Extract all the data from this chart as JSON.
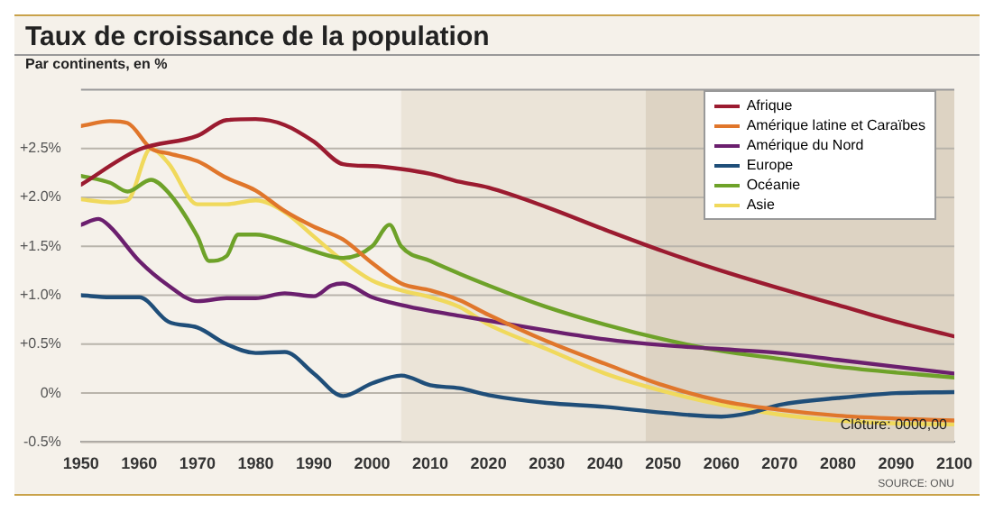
{
  "chart_data": {
    "type": "line",
    "title": "Taux de croissance de la population",
    "subtitle": "Par continents, en %",
    "annotations": [
      "Clôture: 0000,00",
      "SOURCE: ONU"
    ],
    "xlim": [
      1950,
      2100
    ],
    "xticks": [
      1950,
      1960,
      1970,
      1980,
      1990,
      2000,
      2010,
      2020,
      2030,
      2040,
      2050,
      2060,
      2070,
      2080,
      2090,
      2100
    ],
    "ylim": [
      -0.5,
      3.1
    ],
    "yticks": [
      {
        "value": -0.5,
        "label": "-0.5%"
      },
      {
        "value": 0,
        "label": "0%"
      },
      {
        "value": 0.5,
        "label": "+0.5%"
      },
      {
        "value": 1,
        "label": "+1.0%"
      },
      {
        "value": 1.5,
        "label": "+1.5%"
      },
      {
        "value": 2,
        "label": "+2.0%"
      },
      {
        "value": 2.5,
        "label": "+2.5%"
      }
    ],
    "grid": "y",
    "legend": "top right",
    "line_style": "solid",
    "marker": "none",
    "bands": [
      {
        "axis": "x",
        "from": 2005,
        "to": 2047,
        "color": "#ebe4d8"
      },
      {
        "axis": "x",
        "from": 2047,
        "to": 2100,
        "color": "#ddd3c3"
      }
    ],
    "series": [
      {
        "name": "Afrique",
        "color": "#9b1b30",
        "x": [
          1950,
          1960,
          1970,
          1975,
          1980,
          1985,
          1990,
          1995,
          2000,
          2005,
          2010,
          2015,
          2020,
          2030,
          2040,
          2050,
          2060,
          2070,
          2080,
          2090,
          2100
        ],
        "values": [
          2.13,
          2.49,
          2.63,
          2.79,
          2.8,
          2.74,
          2.57,
          2.34,
          2.32,
          2.29,
          2.24,
          2.16,
          2.1,
          1.9,
          1.67,
          1.45,
          1.25,
          1.07,
          0.9,
          0.73,
          0.58
        ]
      },
      {
        "name": "Amérique latine et Caraïbes",
        "color": "#e0762b",
        "x": [
          1950,
          1955,
          1958,
          1962,
          1965,
          1970,
          1975,
          1980,
          1985,
          1990,
          1995,
          2000,
          2005,
          2010,
          2015,
          2020,
          2030,
          2040,
          2050,
          2060,
          2070,
          2080,
          2090,
          2100
        ],
        "values": [
          2.73,
          2.78,
          2.76,
          2.5,
          2.45,
          2.37,
          2.2,
          2.07,
          1.86,
          1.7,
          1.57,
          1.33,
          1.12,
          1.05,
          0.95,
          0.8,
          0.53,
          0.3,
          0.08,
          -0.08,
          -0.17,
          -0.23,
          -0.26,
          -0.28
        ]
      },
      {
        "name": "Amérique du Nord",
        "color": "#6b1f6e",
        "x": [
          1950,
          1953,
          1955,
          1960,
          1965,
          1970,
          1975,
          1980,
          1985,
          1990,
          1993,
          1995,
          2000,
          2005,
          2010,
          2015,
          2020,
          2030,
          2040,
          2050,
          2060,
          2070,
          2080,
          2090,
          2100
        ],
        "values": [
          1.72,
          1.78,
          1.7,
          1.35,
          1.1,
          0.94,
          0.97,
          0.97,
          1.02,
          0.99,
          1.1,
          1.12,
          0.98,
          0.9,
          0.84,
          0.79,
          0.74,
          0.64,
          0.55,
          0.49,
          0.45,
          0.41,
          0.34,
          0.27,
          0.2
        ]
      },
      {
        "name": "Europe",
        "color": "#1f4e79",
        "x": [
          1950,
          1955,
          1960,
          1965,
          1970,
          1975,
          1980,
          1985,
          1990,
          1995,
          2000,
          2005,
          2010,
          2015,
          2020,
          2030,
          2040,
          2050,
          2060,
          2065,
          2070,
          2080,
          2090,
          2100
        ],
        "values": [
          1.0,
          0.98,
          0.98,
          0.73,
          0.67,
          0.5,
          0.41,
          0.42,
          0.2,
          -0.03,
          0.1,
          0.18,
          0.08,
          0.05,
          -0.02,
          -0.1,
          -0.14,
          -0.2,
          -0.24,
          -0.2,
          -0.12,
          -0.05,
          0.0,
          0.01
        ]
      },
      {
        "name": "Océanie",
        "color": "#6ea229",
        "x": [
          1950,
          1955,
          1958,
          1962,
          1965,
          1970,
          1972,
          1975,
          1977,
          1980,
          1985,
          1990,
          1995,
          2000,
          2003,
          2005,
          2010,
          2020,
          2030,
          2040,
          2050,
          2060,
          2070,
          2080,
          2090,
          2100
        ],
        "values": [
          2.22,
          2.15,
          2.06,
          2.18,
          2.05,
          1.6,
          1.35,
          1.4,
          1.62,
          1.62,
          1.55,
          1.45,
          1.38,
          1.5,
          1.72,
          1.5,
          1.35,
          1.1,
          0.88,
          0.7,
          0.55,
          0.43,
          0.35,
          0.27,
          0.21,
          0.16
        ]
      },
      {
        "name": "Asie",
        "color": "#f0d95c",
        "x": [
          1950,
          1955,
          1958,
          1962,
          1965,
          1970,
          1975,
          1980,
          1985,
          1990,
          1995,
          2000,
          2005,
          2010,
          2015,
          2020,
          2030,
          2040,
          2050,
          2060,
          2070,
          2080,
          2090,
          2100
        ],
        "values": [
          1.98,
          1.95,
          1.97,
          2.5,
          2.35,
          1.93,
          1.93,
          1.97,
          1.85,
          1.6,
          1.35,
          1.15,
          1.05,
          0.98,
          0.88,
          0.7,
          0.45,
          0.2,
          0.02,
          -0.12,
          -0.22,
          -0.28,
          -0.31,
          -0.32
        ]
      }
    ]
  }
}
